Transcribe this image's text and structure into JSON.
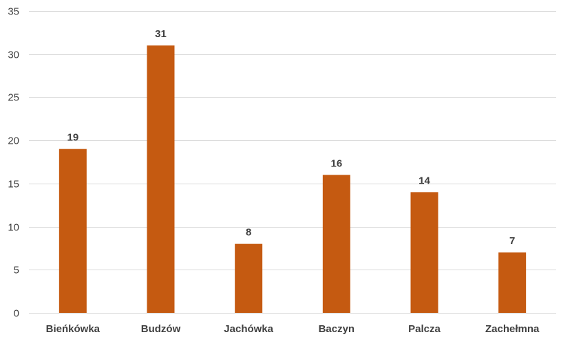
{
  "chart_data": {
    "type": "bar",
    "categories": [
      "Bieńkówka",
      "Budzów",
      "Jachówka",
      "Baczyn",
      "Palcza",
      "Zachełmna"
    ],
    "values": [
      19,
      31,
      8,
      16,
      14,
      7
    ],
    "ylim": [
      0,
      35
    ],
    "yticks": [
      0,
      5,
      10,
      15,
      20,
      25,
      30,
      35
    ],
    "title": "",
    "xlabel": "",
    "ylabel": "",
    "grid": true,
    "legend": "none",
    "data_labels": true,
    "bar_color": "#c55a11"
  }
}
